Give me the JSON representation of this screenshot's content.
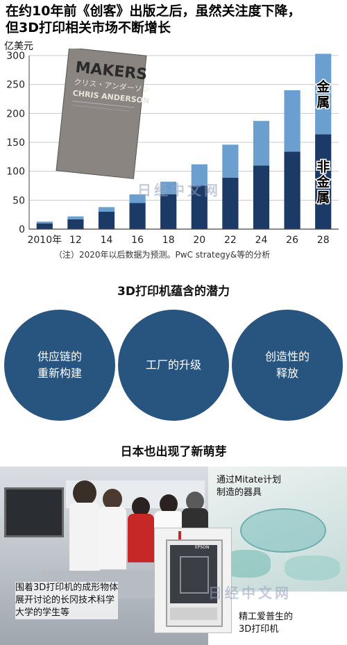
{
  "headline": {
    "line1": "在约10年前《创客》出版之后，虽然关注度下降，",
    "line2": "但3D打印相关市场不断增长"
  },
  "chart_data": {
    "type": "bar",
    "stacked": true,
    "unit_label": "亿美元",
    "categories": [
      "2010年",
      "12",
      "14",
      "16",
      "18",
      "20",
      "22",
      "24",
      "26",
      "28"
    ],
    "series": [
      {
        "name": "非金属",
        "color": "#1b3a66",
        "values": [
          10,
          17,
          30,
          45,
          60,
          75,
          89,
          110,
          134,
          164
        ]
      },
      {
        "name": "金属",
        "color": "#6b9fd0",
        "values": [
          3,
          5,
          8,
          15,
          22,
          37,
          57,
          77,
          106,
          139
        ]
      }
    ],
    "ylim": [
      0,
      300
    ],
    "yticks": [
      0,
      50,
      100,
      150,
      200,
      250,
      300
    ],
    "grid": true,
    "book_cover": {
      "title": "MAKERS",
      "subtitle": "クリス・アンダーソン",
      "author": "CHRIS ANDERSON"
    }
  },
  "note": "（注）2020年以后数据为预测。PwC strategy&等的分析",
  "section1": {
    "title": "3D打印机蕴含的潜力",
    "circles": [
      {
        "line1": "供应链的",
        "line2": "重新构建"
      },
      {
        "line1": "工厂的升级",
        "line2": ""
      },
      {
        "line1": "创造性的",
        "line2": "释放"
      }
    ]
  },
  "section2": {
    "title": "日本也出现了新萌芽",
    "caption_top_right": {
      "line1": "通过Mitate计划",
      "line2": "制造的器具"
    },
    "caption_bottom_left": {
      "line1": "围着3D打印机的成形物体",
      "line2": "展开讨论的长冈技术科学",
      "line3": "大学的学生等"
    },
    "caption_bottom_right": {
      "line1": "精工爱普生的",
      "line2": "3D打印机"
    },
    "printer_brand": "EPSON"
  },
  "watermark": "日经中文网",
  "colors": {
    "circle": "#28557f",
    "dark_bar": "#1b3a66",
    "light_bar": "#6b9fd0"
  }
}
